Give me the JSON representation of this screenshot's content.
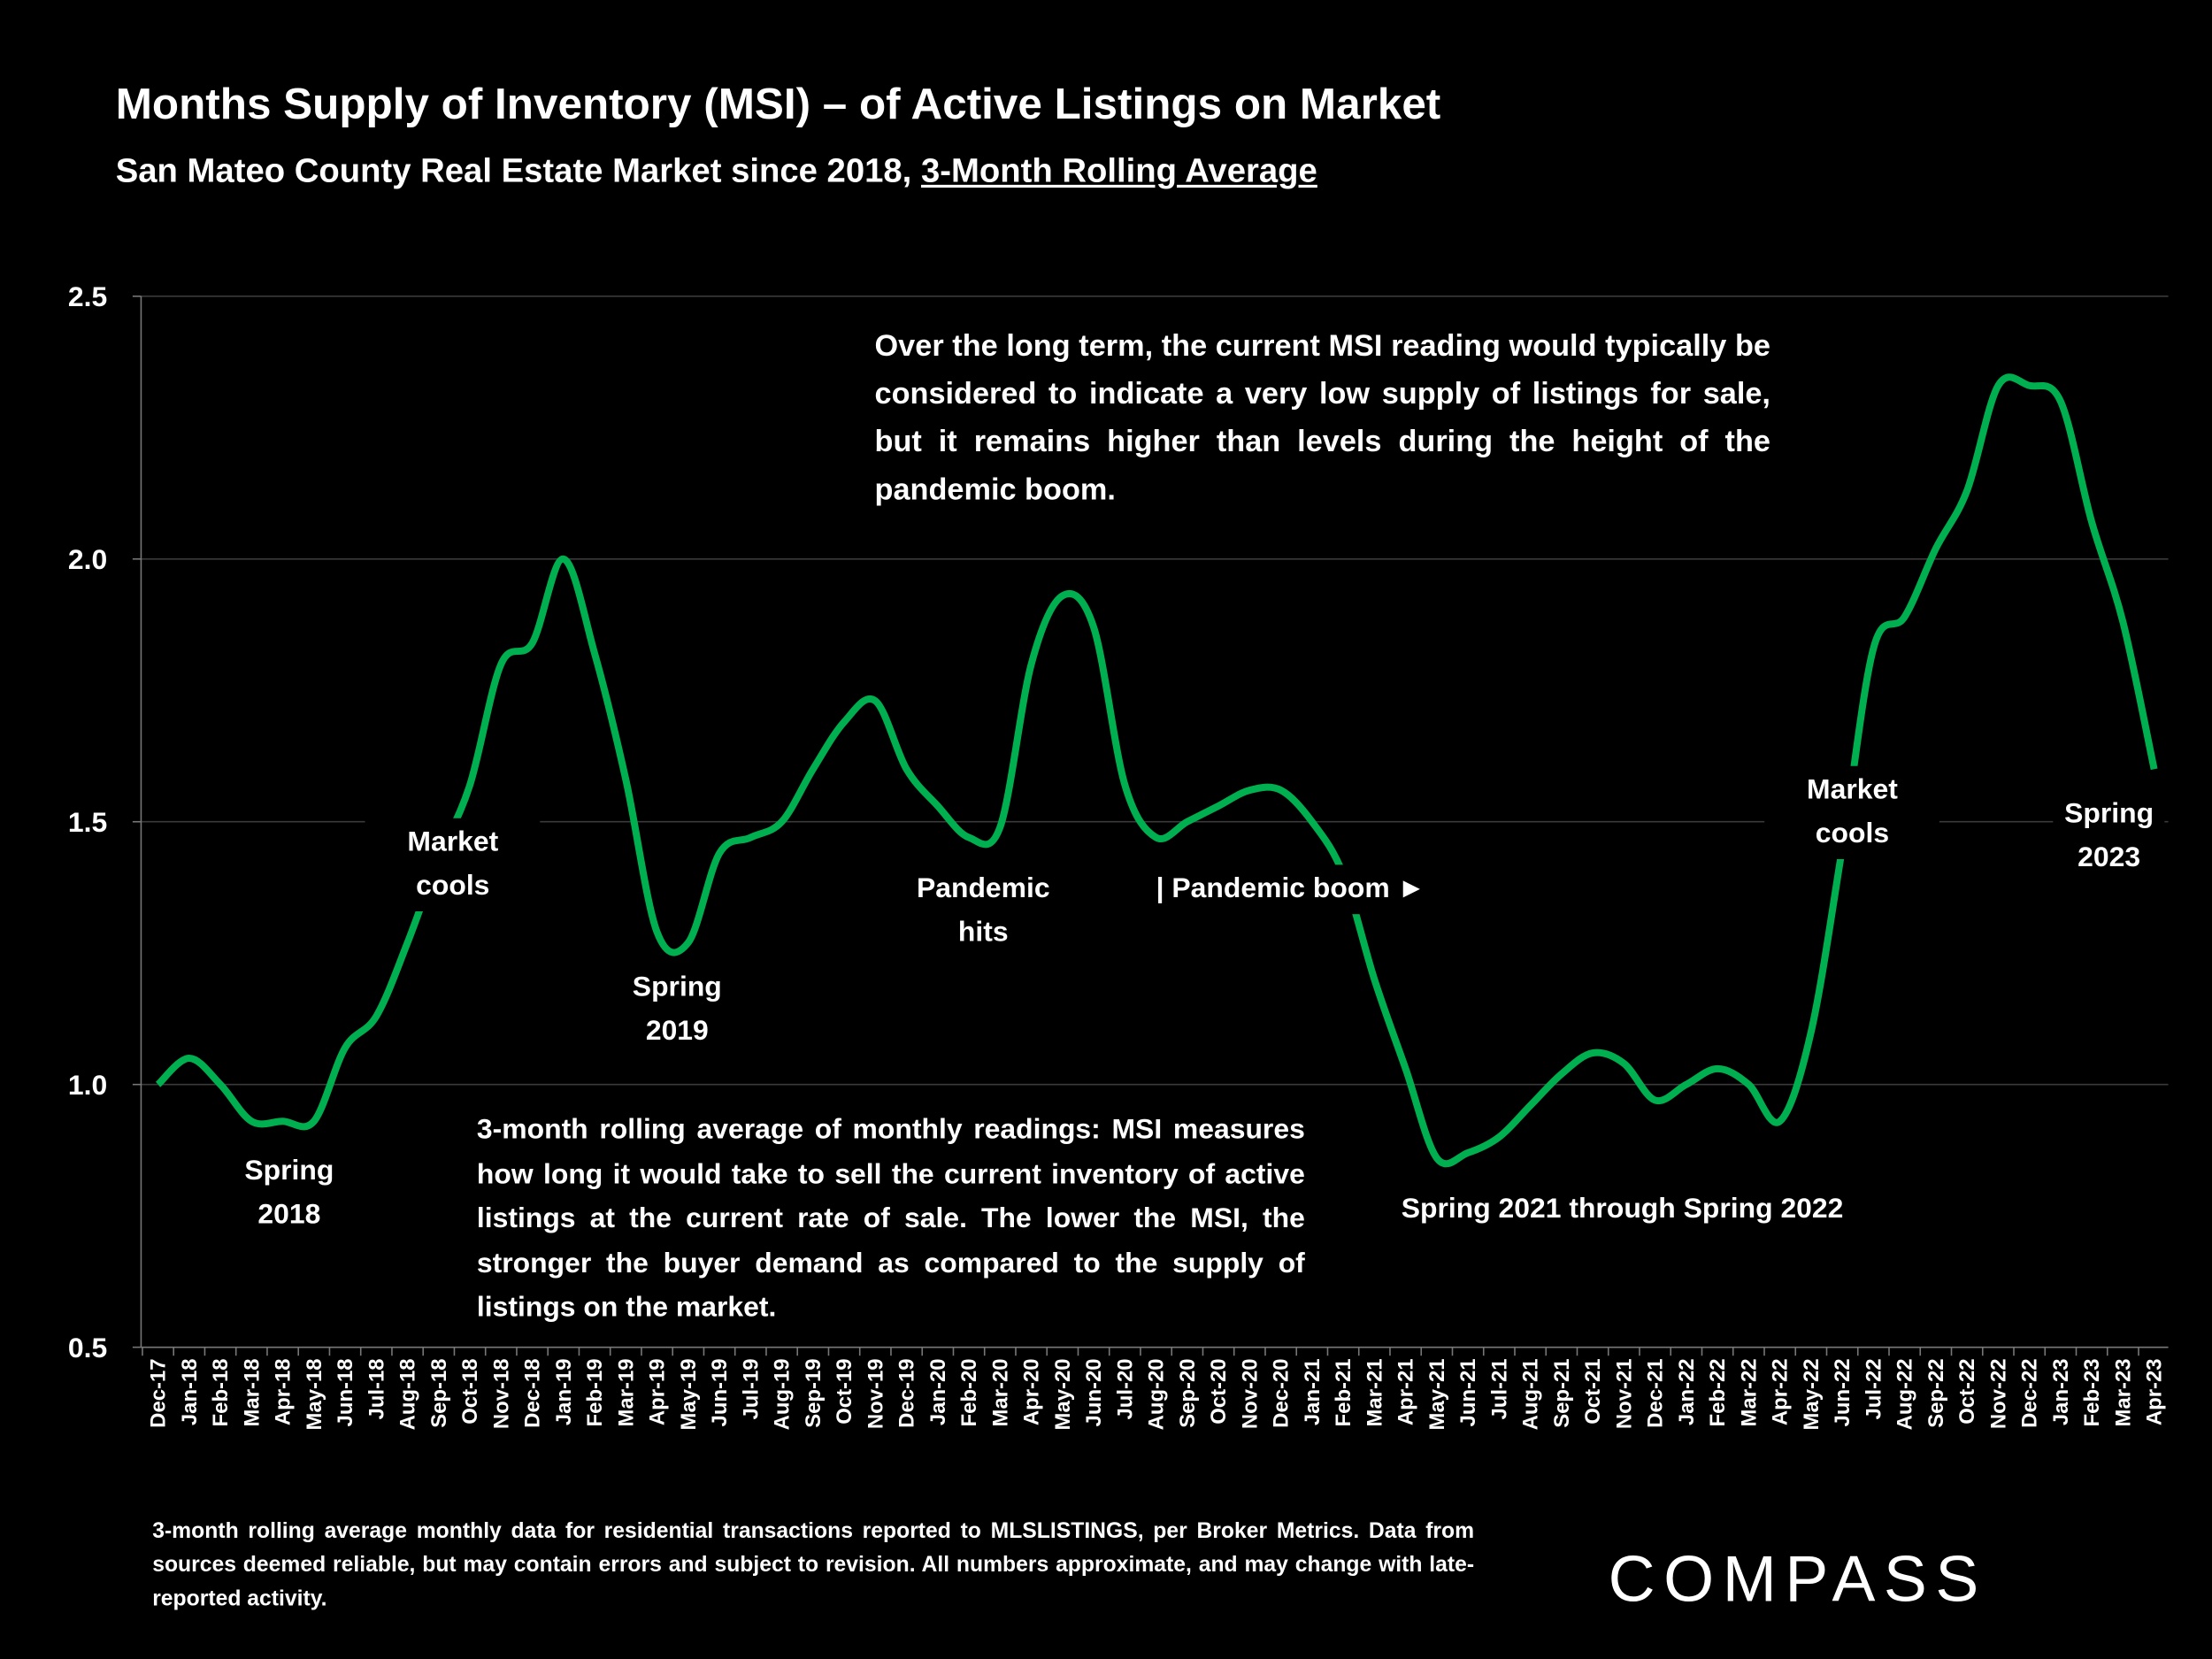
{
  "chart_data": {
    "type": "line",
    "title": "Months Supply of Inventory (MSI) – of Active Listings on Market",
    "subtitle": "San Mateo County Real Estate Market since 2018,",
    "subtitle_emphasis": "3-Month Rolling Average",
    "categories": [
      "Dec-17",
      "Jan-18",
      "Feb-18",
      "Mar-18",
      "Apr-18",
      "May-18",
      "Jun-18",
      "Jul-18",
      "Aug-18",
      "Sep-18",
      "Oct-18",
      "Nov-18",
      "Dec-18",
      "Jan-19",
      "Feb-19",
      "Mar-19",
      "Apr-19",
      "May-19",
      "Jun-19",
      "Jul-19",
      "Aug-19",
      "Sep-19",
      "Oct-19",
      "Nov-19",
      "Dec-19",
      "Jan-20",
      "Feb-20",
      "Mar-20",
      "Apr-20",
      "May-20",
      "Jun-20",
      "Jul-20",
      "Aug-20",
      "Sep-20",
      "Oct-20",
      "Nov-20",
      "Dec-20",
      "Jan-21",
      "Feb-21",
      "Mar-21",
      "Apr-21",
      "May-21",
      "Jun-21",
      "Jul-21",
      "Aug-21",
      "Sep-21",
      "Oct-21",
      "Nov-21",
      "Dec-21",
      "Jan-22",
      "Feb-22",
      "Mar-22",
      "Apr-22",
      "May-22",
      "Jun-22",
      "Jul-22",
      "Aug-22",
      "Sep-22",
      "Oct-22",
      "Nov-22",
      "Dec-22",
      "Jan-23",
      "Feb-23",
      "Mar-23",
      "Apr-23"
    ],
    "values": [
      1.0,
      1.05,
      1.0,
      0.93,
      0.93,
      0.93,
      1.07,
      1.13,
      1.27,
      1.43,
      1.57,
      1.8,
      1.84,
      2.0,
      1.82,
      1.58,
      1.29,
      1.27,
      1.44,
      1.47,
      1.5,
      1.6,
      1.69,
      1.73,
      1.6,
      1.53,
      1.47,
      1.49,
      1.8,
      1.93,
      1.87,
      1.57,
      1.47,
      1.5,
      1.53,
      1.56,
      1.56,
      1.5,
      1.4,
      1.2,
      1.03,
      0.86,
      0.87,
      0.9,
      0.96,
      1.02,
      1.06,
      1.04,
      0.97,
      1.0,
      1.03,
      1.0,
      0.93,
      1.1,
      1.45,
      1.83,
      1.89,
      2.02,
      2.13,
      2.33,
      2.33,
      2.3,
      2.07,
      1.88,
      1.6
    ],
    "color": "#00b050",
    "ylim": [
      0.5,
      2.5
    ],
    "yticks": [
      {
        "value": 0.5,
        "label": "0.5"
      },
      {
        "value": 1.0,
        "label": "1.0"
      },
      {
        "value": 1.5,
        "label": "1.5"
      },
      {
        "value": 2.0,
        "label": "2.0"
      },
      {
        "value": 2.5,
        "label": "2.5"
      }
    ],
    "grid": true,
    "annotations": [
      "Spring\n2018",
      "Market\ncools",
      "Spring\n2019",
      "Pandemic\nhits",
      "| Pandemic boom ►",
      "Spring 2021 through Spring 2022",
      "Market\ncools",
      "Spring\n2023"
    ],
    "notes": [
      "Over the long term, the current MSI reading would typically be considered to indicate a very low supply of listings for sale, but it remains higher than levels during the height of the pandemic boom.",
      "3-month rolling average of monthly readings: MSI measures how long it would take to sell the current inventory of active listings at the current rate of sale. The lower the MSI, the stronger the buyer demand as compared to the supply of listings on the market."
    ],
    "footnote": "3-month rolling average monthly data for residential transactions reported to MLSLISTINGS, per Broker Metrics. Data from sources deemed reliable, but may contain errors and subject to revision. All numbers approximate, and may change with late-reported activity.",
    "logo": "COMPASS"
  }
}
